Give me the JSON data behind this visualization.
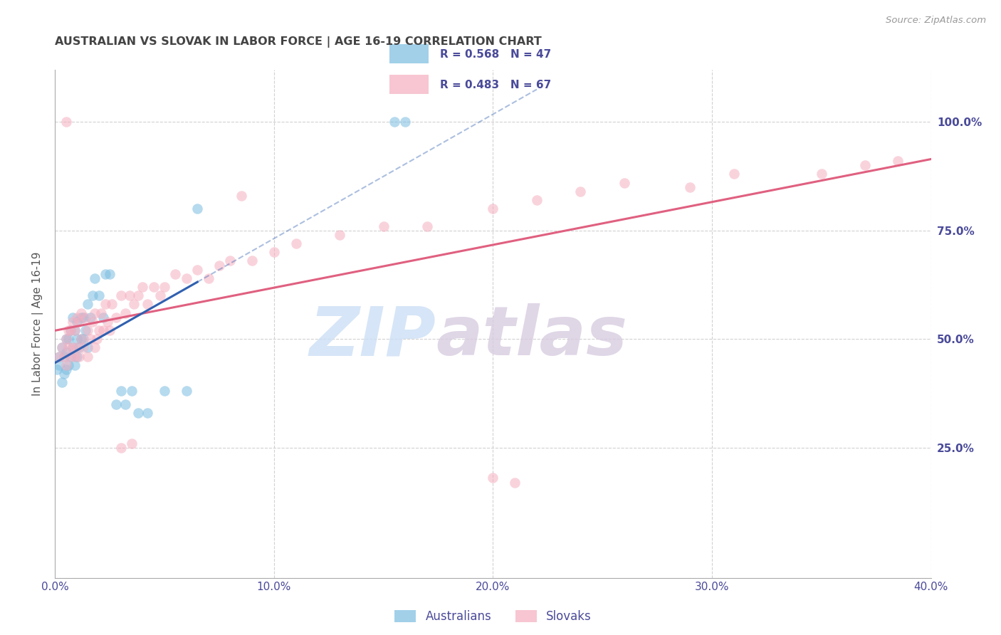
{
  "title": "AUSTRALIAN VS SLOVAK IN LABOR FORCE | AGE 16-19 CORRELATION CHART",
  "source": "Source: ZipAtlas.com",
  "ylabel": "In Labor Force | Age 16-19",
  "xlim": [
    0.0,
    0.4
  ],
  "ylim": [
    -0.05,
    1.12
  ],
  "xticks": [
    0.0,
    0.1,
    0.2,
    0.3,
    0.4
  ],
  "xtick_labels": [
    "0.0%",
    "10.0%",
    "20.0%",
    "30.0%",
    "40.0%"
  ],
  "ytick_right_vals": [
    0.25,
    0.5,
    0.75,
    1.0
  ],
  "ytick_right_labels": [
    "25.0%",
    "50.0%",
    "75.0%",
    "100.0%"
  ],
  "r_australian": 0.568,
  "n_australian": 47,
  "r_slovak": 0.483,
  "n_slovak": 67,
  "blue_scatter_color": "#7bbde0",
  "pink_scatter_color": "#f5afc0",
  "blue_line_color": "#3060b0",
  "pink_line_color": "#e06080",
  "axis_label_color": "#4a4a9a",
  "title_color": "#444444",
  "grid_color": "#cccccc",
  "australian_x": [
    0.001,
    0.002,
    0.002,
    0.003,
    0.003,
    0.004,
    0.004,
    0.005,
    0.005,
    0.005,
    0.006,
    0.006,
    0.007,
    0.007,
    0.008,
    0.008,
    0.009,
    0.009,
    0.01,
    0.01,
    0.01,
    0.011,
    0.012,
    0.012,
    0.013,
    0.013,
    0.014,
    0.015,
    0.015,
    0.016,
    0.017,
    0.018,
    0.02,
    0.022,
    0.023,
    0.025,
    0.028,
    0.03,
    0.032,
    0.035,
    0.038,
    0.042,
    0.05,
    0.06,
    0.065,
    0.155,
    0.16
  ],
  "australian_y": [
    0.43,
    0.44,
    0.46,
    0.4,
    0.48,
    0.42,
    0.46,
    0.43,
    0.47,
    0.5,
    0.44,
    0.5,
    0.46,
    0.52,
    0.48,
    0.55,
    0.44,
    0.52,
    0.46,
    0.5,
    0.54,
    0.48,
    0.5,
    0.55,
    0.5,
    0.55,
    0.52,
    0.48,
    0.58,
    0.55,
    0.6,
    0.64,
    0.6,
    0.55,
    0.65,
    0.65,
    0.35,
    0.38,
    0.35,
    0.38,
    0.33,
    0.33,
    0.38,
    0.38,
    0.8,
    1.0,
    1.0
  ],
  "slovak_x": [
    0.002,
    0.003,
    0.004,
    0.005,
    0.005,
    0.006,
    0.006,
    0.007,
    0.007,
    0.008,
    0.008,
    0.009,
    0.009,
    0.01,
    0.01,
    0.011,
    0.011,
    0.012,
    0.012,
    0.013,
    0.014,
    0.015,
    0.015,
    0.016,
    0.017,
    0.018,
    0.018,
    0.019,
    0.02,
    0.021,
    0.022,
    0.023,
    0.024,
    0.025,
    0.026,
    0.028,
    0.03,
    0.032,
    0.034,
    0.036,
    0.038,
    0.04,
    0.042,
    0.045,
    0.048,
    0.05,
    0.055,
    0.06,
    0.065,
    0.07,
    0.075,
    0.08,
    0.09,
    0.1,
    0.11,
    0.13,
    0.15,
    0.17,
    0.2,
    0.22,
    0.24,
    0.26,
    0.29,
    0.31,
    0.35,
    0.37,
    0.385
  ],
  "slovak_y": [
    0.46,
    0.48,
    0.46,
    0.44,
    0.5,
    0.48,
    0.52,
    0.46,
    0.52,
    0.48,
    0.54,
    0.46,
    0.52,
    0.48,
    0.55,
    0.46,
    0.54,
    0.5,
    0.56,
    0.48,
    0.55,
    0.46,
    0.52,
    0.5,
    0.54,
    0.48,
    0.56,
    0.5,
    0.52,
    0.56,
    0.52,
    0.58,
    0.54,
    0.52,
    0.58,
    0.55,
    0.6,
    0.56,
    0.6,
    0.58,
    0.6,
    0.62,
    0.58,
    0.62,
    0.6,
    0.62,
    0.65,
    0.64,
    0.66,
    0.64,
    0.67,
    0.68,
    0.68,
    0.7,
    0.72,
    0.74,
    0.76,
    0.76,
    0.8,
    0.82,
    0.84,
    0.86,
    0.85,
    0.88,
    0.88,
    0.9,
    0.91
  ],
  "slovak_outliers_x": [
    0.005,
    0.03,
    0.035,
    0.2,
    0.21,
    0.085
  ],
  "slovak_outliers_y": [
    1.0,
    0.25,
    0.26,
    0.18,
    0.17,
    0.83
  ],
  "watermark_zip_color": "#ccdff5",
  "watermark_atlas_color": "#d8cce0"
}
